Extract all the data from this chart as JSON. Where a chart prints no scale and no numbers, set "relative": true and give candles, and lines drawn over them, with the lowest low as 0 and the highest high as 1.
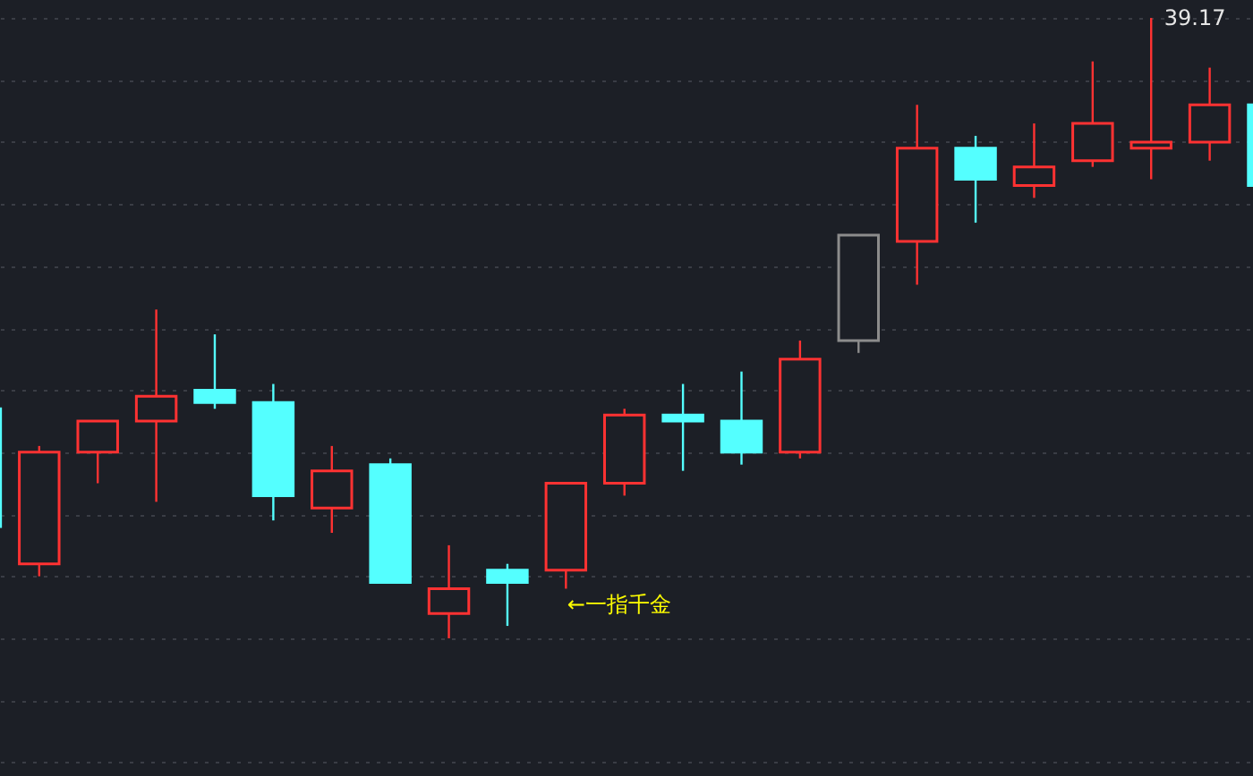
{
  "chart_data": {
    "type": "candlestick",
    "relative": true,
    "grid": "y",
    "categories": [
      null,
      null,
      null,
      null,
      null,
      null,
      null,
      null,
      null,
      null,
      null,
      null,
      null,
      null,
      null,
      null,
      null,
      null,
      null,
      null,
      null,
      null,
      null
    ],
    "ohlc": [
      [
        0.37,
        0.37,
        0.18,
        0.18
      ],
      [
        0.12,
        0.31,
        0.1,
        0.3
      ],
      [
        0.3,
        0.35,
        0.25,
        0.35
      ],
      [
        0.35,
        0.53,
        0.22,
        0.39
      ],
      [
        0.4,
        0.49,
        0.37,
        0.38
      ],
      [
        0.38,
        0.41,
        0.19,
        0.23
      ],
      [
        0.21,
        0.31,
        0.17,
        0.27
      ],
      [
        0.28,
        0.29,
        0.09,
        0.09
      ],
      [
        0.04,
        0.15,
        0.0,
        0.08
      ],
      [
        0.11,
        0.12,
        0.02,
        0.09
      ],
      [
        0.11,
        0.25,
        0.08,
        0.25
      ],
      [
        0.25,
        0.37,
        0.23,
        0.36
      ],
      [
        0.36,
        0.41,
        0.27,
        0.35
      ],
      [
        0.35,
        0.43,
        0.28,
        0.3
      ],
      [
        0.3,
        0.48,
        0.29,
        0.45
      ],
      [
        0.48,
        0.65,
        0.46,
        0.65
      ],
      [
        0.64,
        0.86,
        0.57,
        0.79
      ],
      [
        0.79,
        0.81,
        0.67,
        0.74
      ],
      [
        0.73,
        0.83,
        0.71,
        0.76
      ],
      [
        0.77,
        0.93,
        0.76,
        0.83
      ],
      [
        0.79,
        1.0,
        0.74,
        0.8
      ],
      [
        0.8,
        0.92,
        0.77,
        0.86
      ],
      [
        0.86,
        0.86,
        0.73,
        0.73
      ]
    ],
    "colors": [
      "#54ffff",
      "#ff3232",
      "#ff3232",
      "#ff3232",
      "#54ffff",
      "#54ffff",
      "#ff3232",
      "#54ffff",
      "#ff3232",
      "#54ffff",
      "#ff3232",
      "#ff3232",
      "#54ffff",
      "#54ffff",
      "#ff3232",
      "#8c8c8c",
      "#ff3232",
      "#54ffff",
      "#ff3232",
      "#ff3232",
      "#ff3232",
      "#ff3232",
      "#54ffff"
    ],
    "annotations": [
      "39.17",
      "←一指千金"
    ]
  }
}
